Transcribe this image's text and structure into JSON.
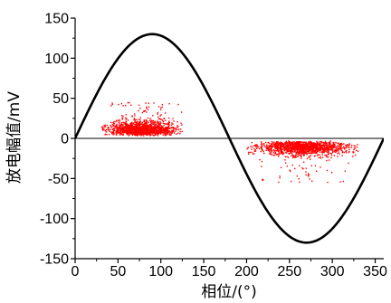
{
  "chart_data": {
    "type": "scatter",
    "title": "",
    "xlabel": "相位/(°)",
    "ylabel": "放电幅值/mV",
    "xlim": [
      0,
      360
    ],
    "ylim": [
      -150,
      150
    ],
    "x_ticks": [
      0,
      50,
      100,
      150,
      200,
      250,
      300,
      350
    ],
    "y_ticks": [
      150,
      100,
      50,
      0,
      -50,
      -100,
      -150
    ],
    "x_tick_labels": [
      "0",
      "50",
      "100",
      "150",
      "200",
      "250",
      "300",
      "350"
    ],
    "y_tick_labels": [
      "150",
      "100",
      "50",
      "0",
      "-50",
      "-100",
      "-150"
    ],
    "grid": false,
    "reference_line": {
      "y": 0
    },
    "series": [
      {
        "type": "line",
        "description": "sinusoidal reference",
        "function": "amplitude*sin(x)",
        "amplitude": 130,
        "color": "#000000"
      },
      {
        "type": "scatter",
        "color": "#ff0000",
        "clusters": [
          {
            "x_range": [
              30,
              125
            ],
            "y_range": [
              3,
              45
            ],
            "center": [
              75,
              14
            ]
          },
          {
            "x_range": [
              200,
              330
            ],
            "y_range": [
              -55,
              -3
            ],
            "center": [
              255,
              -20
            ]
          }
        ]
      }
    ]
  }
}
